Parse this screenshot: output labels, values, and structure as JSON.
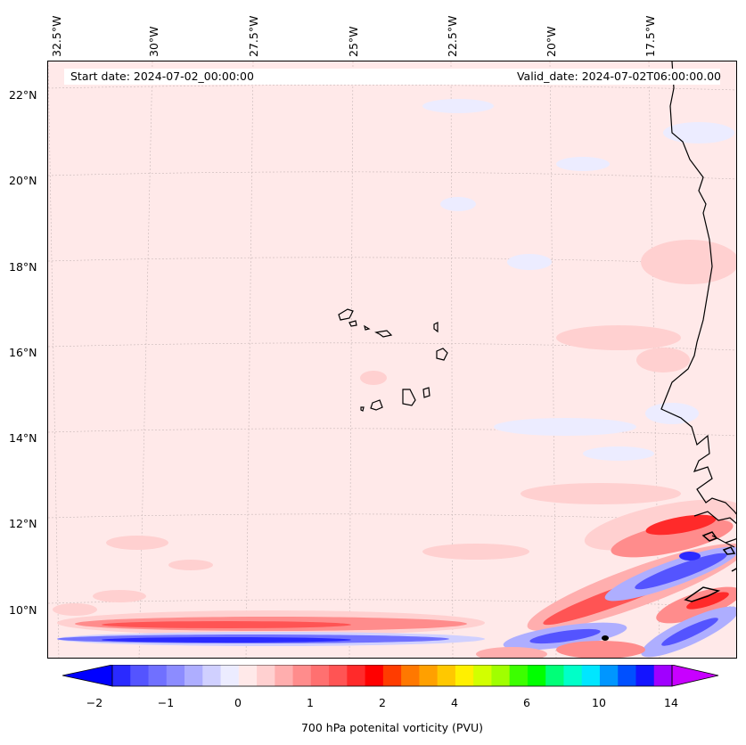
{
  "map": {
    "start_date": "Start date: 2024-07-02_00:00:00",
    "valid_date": "Valid_date: 2024-07-02T06:00:00.00",
    "top_lon_labels": [
      "32.5°W",
      "30°W",
      "27.5°W",
      "25°W",
      "22.5°W",
      "20°W",
      "17.5°W"
    ],
    "lat_labels": [
      "22°N",
      "20°N",
      "18°N",
      "16°N",
      "14°N",
      "12°N",
      "10°N"
    ],
    "background_color": "#ffe9e9",
    "coastline_color": "#000000"
  },
  "colorbar": {
    "title": "700 hPa potenital vorticity (PVU)",
    "tick_labels": [
      "−2",
      "−1",
      "0",
      "1",
      "2",
      "4",
      "6",
      "10",
      "14"
    ],
    "colors": [
      "#0000ff",
      "#2a2aff",
      "#5454ff",
      "#7070ff",
      "#8c8cff",
      "#aeaeff",
      "#d0d0ff",
      "#ececff",
      "#ffe9e9",
      "#ffd0d0",
      "#ffaeae",
      "#ff8c8c",
      "#ff7070",
      "#ff5454",
      "#ff2a2a",
      "#ff0000",
      "#ff3c00",
      "#ff7800",
      "#ffa000",
      "#ffc800",
      "#fff000",
      "#d2ff00",
      "#a0ff00",
      "#3cff00",
      "#00ff00",
      "#00ff78",
      "#00ffc8",
      "#00e6ff",
      "#0096ff",
      "#0050ff",
      "#1414ff",
      "#a000ff",
      "#c800ff"
    ]
  }
}
